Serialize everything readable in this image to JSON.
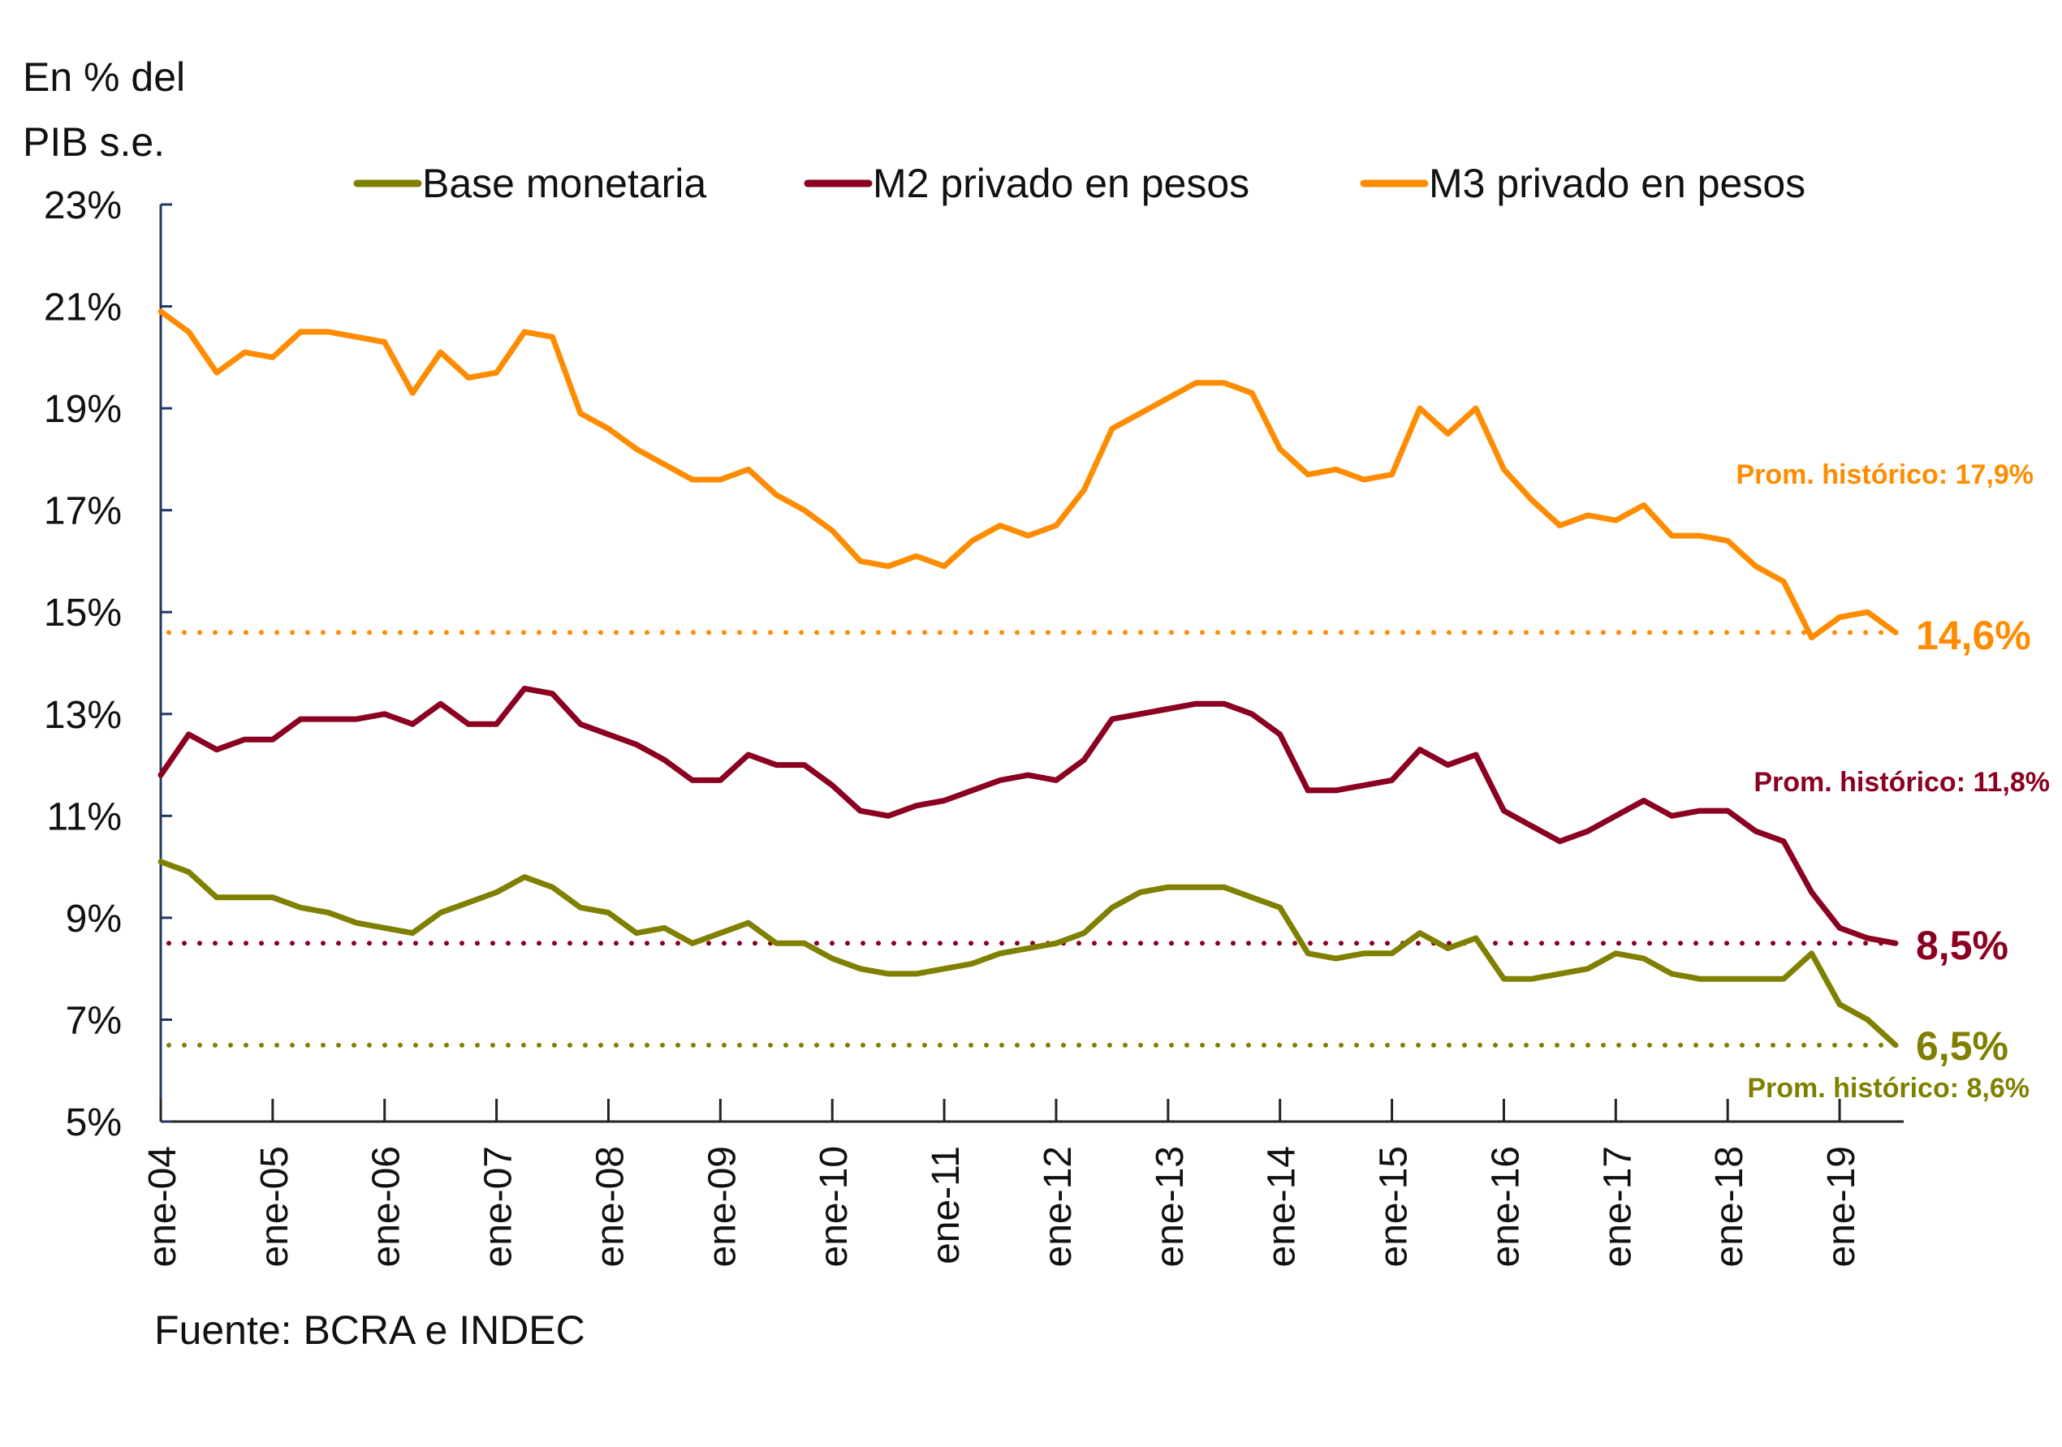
{
  "chart_data": {
    "type": "line",
    "title": "",
    "ylabel": "En % del\nPIB s.e.",
    "xlabel": "",
    "source": "Fuente: BCRA e INDEC",
    "ylim": [
      5,
      23
    ],
    "yticks": [
      5,
      7,
      9,
      11,
      13,
      15,
      17,
      19,
      21,
      23
    ],
    "ytick_labels": [
      "5%",
      "7%",
      "9%",
      "11%",
      "13%",
      "15%",
      "17%",
      "19%",
      "21%",
      "23%"
    ],
    "x_start": 2004.0,
    "x_step": 0.25,
    "xlim": [
      2004.0,
      2019.5
    ],
    "xticks": [
      2004,
      2005,
      2006,
      2007,
      2008,
      2009,
      2010,
      2011,
      2012,
      2013,
      2014,
      2015,
      2016,
      2017,
      2018,
      2019
    ],
    "xtick_labels": [
      "ene-04",
      "ene-05",
      "ene-06",
      "ene-07",
      "ene-08",
      "ene-09",
      "ene-10",
      "ene-11",
      "ene-12",
      "ene-13",
      "ene-14",
      "ene-15",
      "ene-16",
      "ene-17",
      "ene-18",
      "ene-19"
    ],
    "grid": false,
    "legend_position": "top",
    "series": [
      {
        "name": "Base monetaria",
        "color": "#808000",
        "values": [
          10.1,
          9.9,
          9.4,
          9.4,
          9.4,
          9.2,
          9.1,
          8.9,
          8.8,
          8.7,
          9.1,
          9.3,
          9.5,
          9.8,
          9.6,
          9.2,
          9.1,
          8.7,
          8.8,
          8.5,
          8.7,
          8.9,
          8.5,
          8.5,
          8.2,
          8.0,
          7.9,
          7.9,
          8.0,
          8.1,
          8.3,
          8.4,
          8.5,
          8.7,
          9.2,
          9.5,
          9.6,
          9.6,
          9.6,
          9.4,
          9.2,
          8.3,
          8.2,
          8.3,
          8.3,
          8.7,
          8.4,
          8.6,
          7.8,
          7.8,
          7.9,
          8.0,
          8.3,
          8.2,
          7.9,
          7.8,
          7.8,
          7.8,
          7.8,
          8.3,
          7.3,
          7.0,
          6.5
        ],
        "average": 8.6,
        "average_label": "Prom. histórico: 8,6%",
        "last_label": "6,5%"
      },
      {
        "name": "M2 privado en pesos",
        "color": "#8B0020",
        "values": [
          11.8,
          12.6,
          12.3,
          12.5,
          12.5,
          12.9,
          12.9,
          12.9,
          13.0,
          12.8,
          13.2,
          12.8,
          12.8,
          13.5,
          13.4,
          12.8,
          12.6,
          12.4,
          12.1,
          11.7,
          11.7,
          12.2,
          12.0,
          12.0,
          11.6,
          11.1,
          11.0,
          11.2,
          11.3,
          11.5,
          11.7,
          11.8,
          11.7,
          12.1,
          12.9,
          13.0,
          13.1,
          13.2,
          13.2,
          13.0,
          12.6,
          11.5,
          11.5,
          11.6,
          11.7,
          12.3,
          12.0,
          12.2,
          11.1,
          10.8,
          10.5,
          10.7,
          11.0,
          11.3,
          11.0,
          11.1,
          11.1,
          10.7,
          10.5,
          9.5,
          8.8,
          8.6,
          8.5
        ],
        "average": 11.8,
        "average_label": "Prom. histórico: 11,8%",
        "last_label": "8,5%"
      },
      {
        "name": "M3 privado en pesos",
        "color": "#FF8C00",
        "values": [
          20.9,
          20.5,
          19.7,
          20.1,
          20.0,
          20.5,
          20.5,
          20.4,
          20.3,
          19.3,
          20.1,
          19.6,
          19.7,
          20.5,
          20.4,
          18.9,
          18.6,
          18.2,
          17.9,
          17.6,
          17.6,
          17.8,
          17.3,
          17.0,
          16.6,
          16.0,
          15.9,
          16.1,
          15.9,
          16.4,
          16.7,
          16.5,
          16.7,
          17.4,
          18.6,
          18.9,
          19.2,
          19.5,
          19.5,
          19.3,
          18.2,
          17.7,
          17.8,
          17.6,
          17.7,
          19.0,
          18.5,
          19.0,
          17.8,
          17.2,
          16.7,
          16.9,
          16.8,
          17.1,
          16.5,
          16.5,
          16.4,
          15.9,
          15.6,
          14.5,
          14.9,
          15.0,
          14.6
        ],
        "average": 17.9,
        "average_label": "Prom. histórico: 17,9%",
        "last_label": "14,6%"
      }
    ],
    "reference_lines": [
      {
        "value": 14.6,
        "color": "#FF8C00",
        "style": "dotted"
      },
      {
        "value": 8.5,
        "color": "#8B0020",
        "style": "dotted"
      },
      {
        "value": 6.5,
        "color": "#808000",
        "style": "dotted"
      }
    ],
    "axis_color": "#1F3864"
  }
}
